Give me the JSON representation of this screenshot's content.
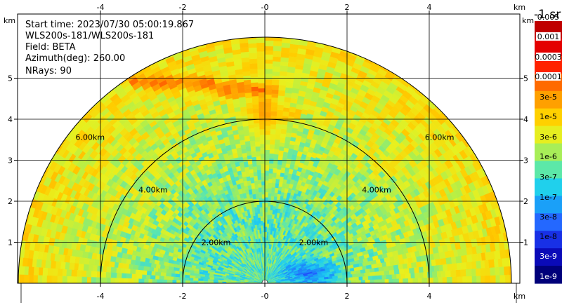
{
  "chart_data": {
    "type": "heatmap",
    "subtype": "lidar-ppi-half-disc",
    "info_lines": [
      "Start time: 2023/07/30 05:00:19.867",
      "WLS200s-181/WLS200s-181",
      "Field: BETA",
      "Azimuth(deg): 260.00",
      "NRays: 90"
    ],
    "x_unit": "km",
    "y_unit": "km",
    "xlim": [
      -5.85,
      6.1
    ],
    "ylim": [
      0,
      6.0
    ],
    "x_ticks": [
      -4,
      -2,
      0,
      2,
      4
    ],
    "y_ticks": [
      1,
      2,
      3,
      4,
      5
    ],
    "x_tick_labels": [
      "-4",
      "-2",
      "-0",
      "2",
      "4"
    ],
    "y_tick_labels": [
      "1",
      "2",
      "3",
      "4",
      "5"
    ],
    "grid": true,
    "max_range_km": 6.0,
    "range_rings": [
      {
        "radius": 2,
        "label": "2.00km"
      },
      {
        "radius": 4,
        "label": "4.00km"
      },
      {
        "radius": 6,
        "label": "6.00km"
      }
    ],
    "aerosol_layer": {
      "altitude_km": 4.72,
      "x_range_km": [
        -3.3,
        0.3
      ],
      "peak_log10_beta": -4.1
    },
    "colorbar": {
      "unit_label": "-1 sr",
      "ticks": [
        "0.005",
        "0.001",
        "0.0003",
        "0.0001",
        "3e-5",
        "1e-5",
        "3e-6",
        "1e-6",
        "3e-7",
        "1e-7",
        "3e-8",
        "1e-8",
        "3e-9",
        "1e-9"
      ],
      "colors": [
        "#c00000",
        "#e40000",
        "#ff2200",
        "#ff6a00",
        "#ffa000",
        "#ffd000",
        "#e6ee20",
        "#a8ee58",
        "#5ce8a8",
        "#20d0ec",
        "#1aa0f8",
        "#2468ff",
        "#1830e6",
        "#0a0ab8",
        "#00007a"
      ]
    }
  }
}
